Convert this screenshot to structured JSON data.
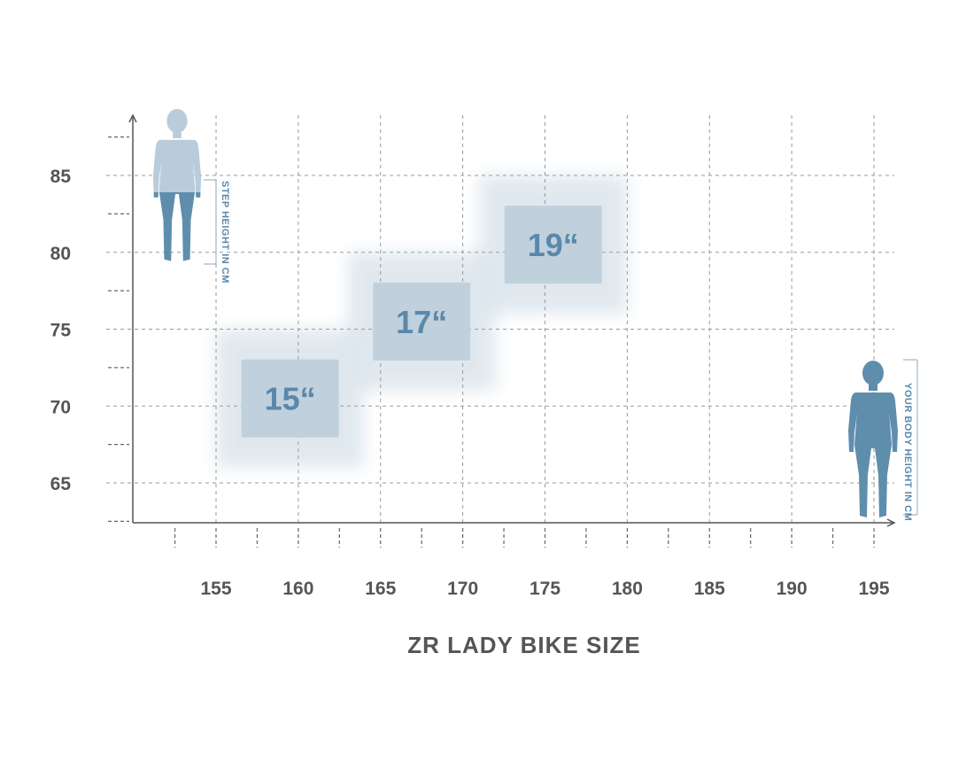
{
  "chart_data": {
    "type": "scatter",
    "title": "ZR LADY BIKE SIZE",
    "xlabel": "YOUR BODY HEIGHT IN CM",
    "ylabel": "STEP HEIGHT IN CM",
    "xlim": [
      150,
      196
    ],
    "ylim": [
      62.5,
      88.5
    ],
    "x_ticks": [
      155,
      160,
      165,
      170,
      175,
      180,
      185,
      190,
      195
    ],
    "y_ticks": [
      65,
      70,
      75,
      80,
      85
    ],
    "grid": true,
    "sizes": [
      {
        "label": "15“",
        "x_range": [
          155,
          164
        ],
        "y_range": [
          66,
          75
        ],
        "x_center": 159.5,
        "y_center": 70.5
      },
      {
        "label": "17“",
        "x_range": [
          163,
          172
        ],
        "y_range": [
          71,
          80
        ],
        "x_center": 167.5,
        "y_center": 75.5
      },
      {
        "label": "19“",
        "x_range": [
          171,
          180
        ],
        "y_range": [
          76,
          85
        ],
        "x_center": 175.5,
        "y_center": 80.5
      }
    ]
  },
  "colors": {
    "axis": "#555555",
    "grid": "#9a9a9a",
    "zone_soft": "#dbe5ec",
    "zone_core": "#c0d0dd",
    "label": "#5a88ab",
    "figure_dark": "#5f8ead",
    "figure_light": "#b8ccdb",
    "note": "#5a88ab"
  },
  "icons": {
    "step_figure": "woman-silhouette-icon",
    "height_figure": "woman-silhouette-icon"
  }
}
